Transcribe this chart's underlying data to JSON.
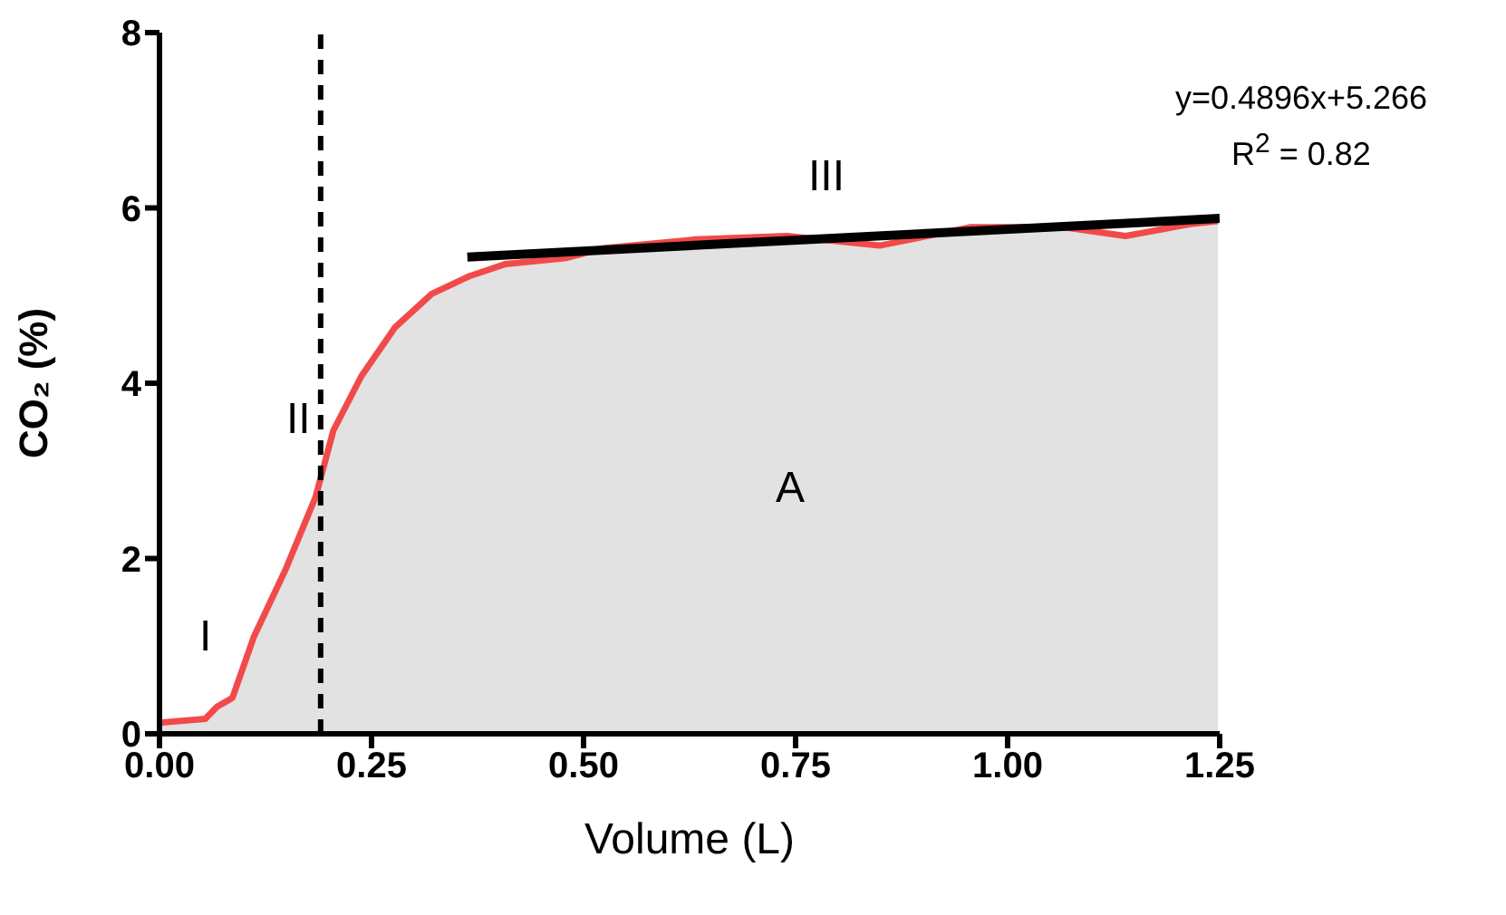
{
  "chart_data": {
    "type": "area",
    "xlabel": "Volume (L)",
    "ylabel": "CO₂ (%)",
    "series": [
      {
        "color": "#f24a4a",
        "x": [
          0.003,
          0.054,
          0.068,
          0.086,
          0.111,
          0.148,
          0.184,
          0.205,
          0.238,
          0.278,
          0.321,
          0.365,
          0.408,
          0.48,
          0.523,
          0.632,
          0.74,
          0.849,
          0.957,
          1.066,
          1.139,
          1.218,
          1.248
        ],
        "values": [
          0.13,
          0.17,
          0.31,
          0.41,
          1.1,
          1.86,
          2.7,
          3.46,
          4.08,
          4.64,
          5.02,
          5.22,
          5.36,
          5.43,
          5.54,
          5.64,
          5.68,
          5.57,
          5.78,
          5.78,
          5.68,
          5.82,
          5.85
        ]
      },
      {
        "type": "line",
        "color": "#000000",
        "x": [
          0.363,
          1.25
        ],
        "values": [
          5.44,
          5.88
        ]
      }
    ],
    "xlim": [
      0,
      1.25
    ],
    "xticks": [
      {
        "value": 0,
        "label": "0.00"
      },
      {
        "value": 0.25,
        "label": "0.25"
      },
      {
        "value": 0.5,
        "label": "0.50"
      },
      {
        "value": 0.75,
        "label": "0.75"
      },
      {
        "value": 1,
        "label": "1.00"
      },
      {
        "value": 1.25,
        "label": "1.25"
      }
    ],
    "ylim": [
      0,
      8
    ],
    "yticks": [
      0,
      2,
      4,
      6,
      8
    ],
    "ref_lines": [
      {
        "axis": "x",
        "value": 0.19,
        "color": "#000000",
        "line_style": "dashed"
      }
    ],
    "annotations": [
      "I",
      "II",
      "III",
      "A",
      "y=0.4896x+5.266",
      "R$^{2}$ = 0.82"
    ],
    "grid": false,
    "legend": false,
    "marker": "none",
    "line_style": "solid"
  }
}
